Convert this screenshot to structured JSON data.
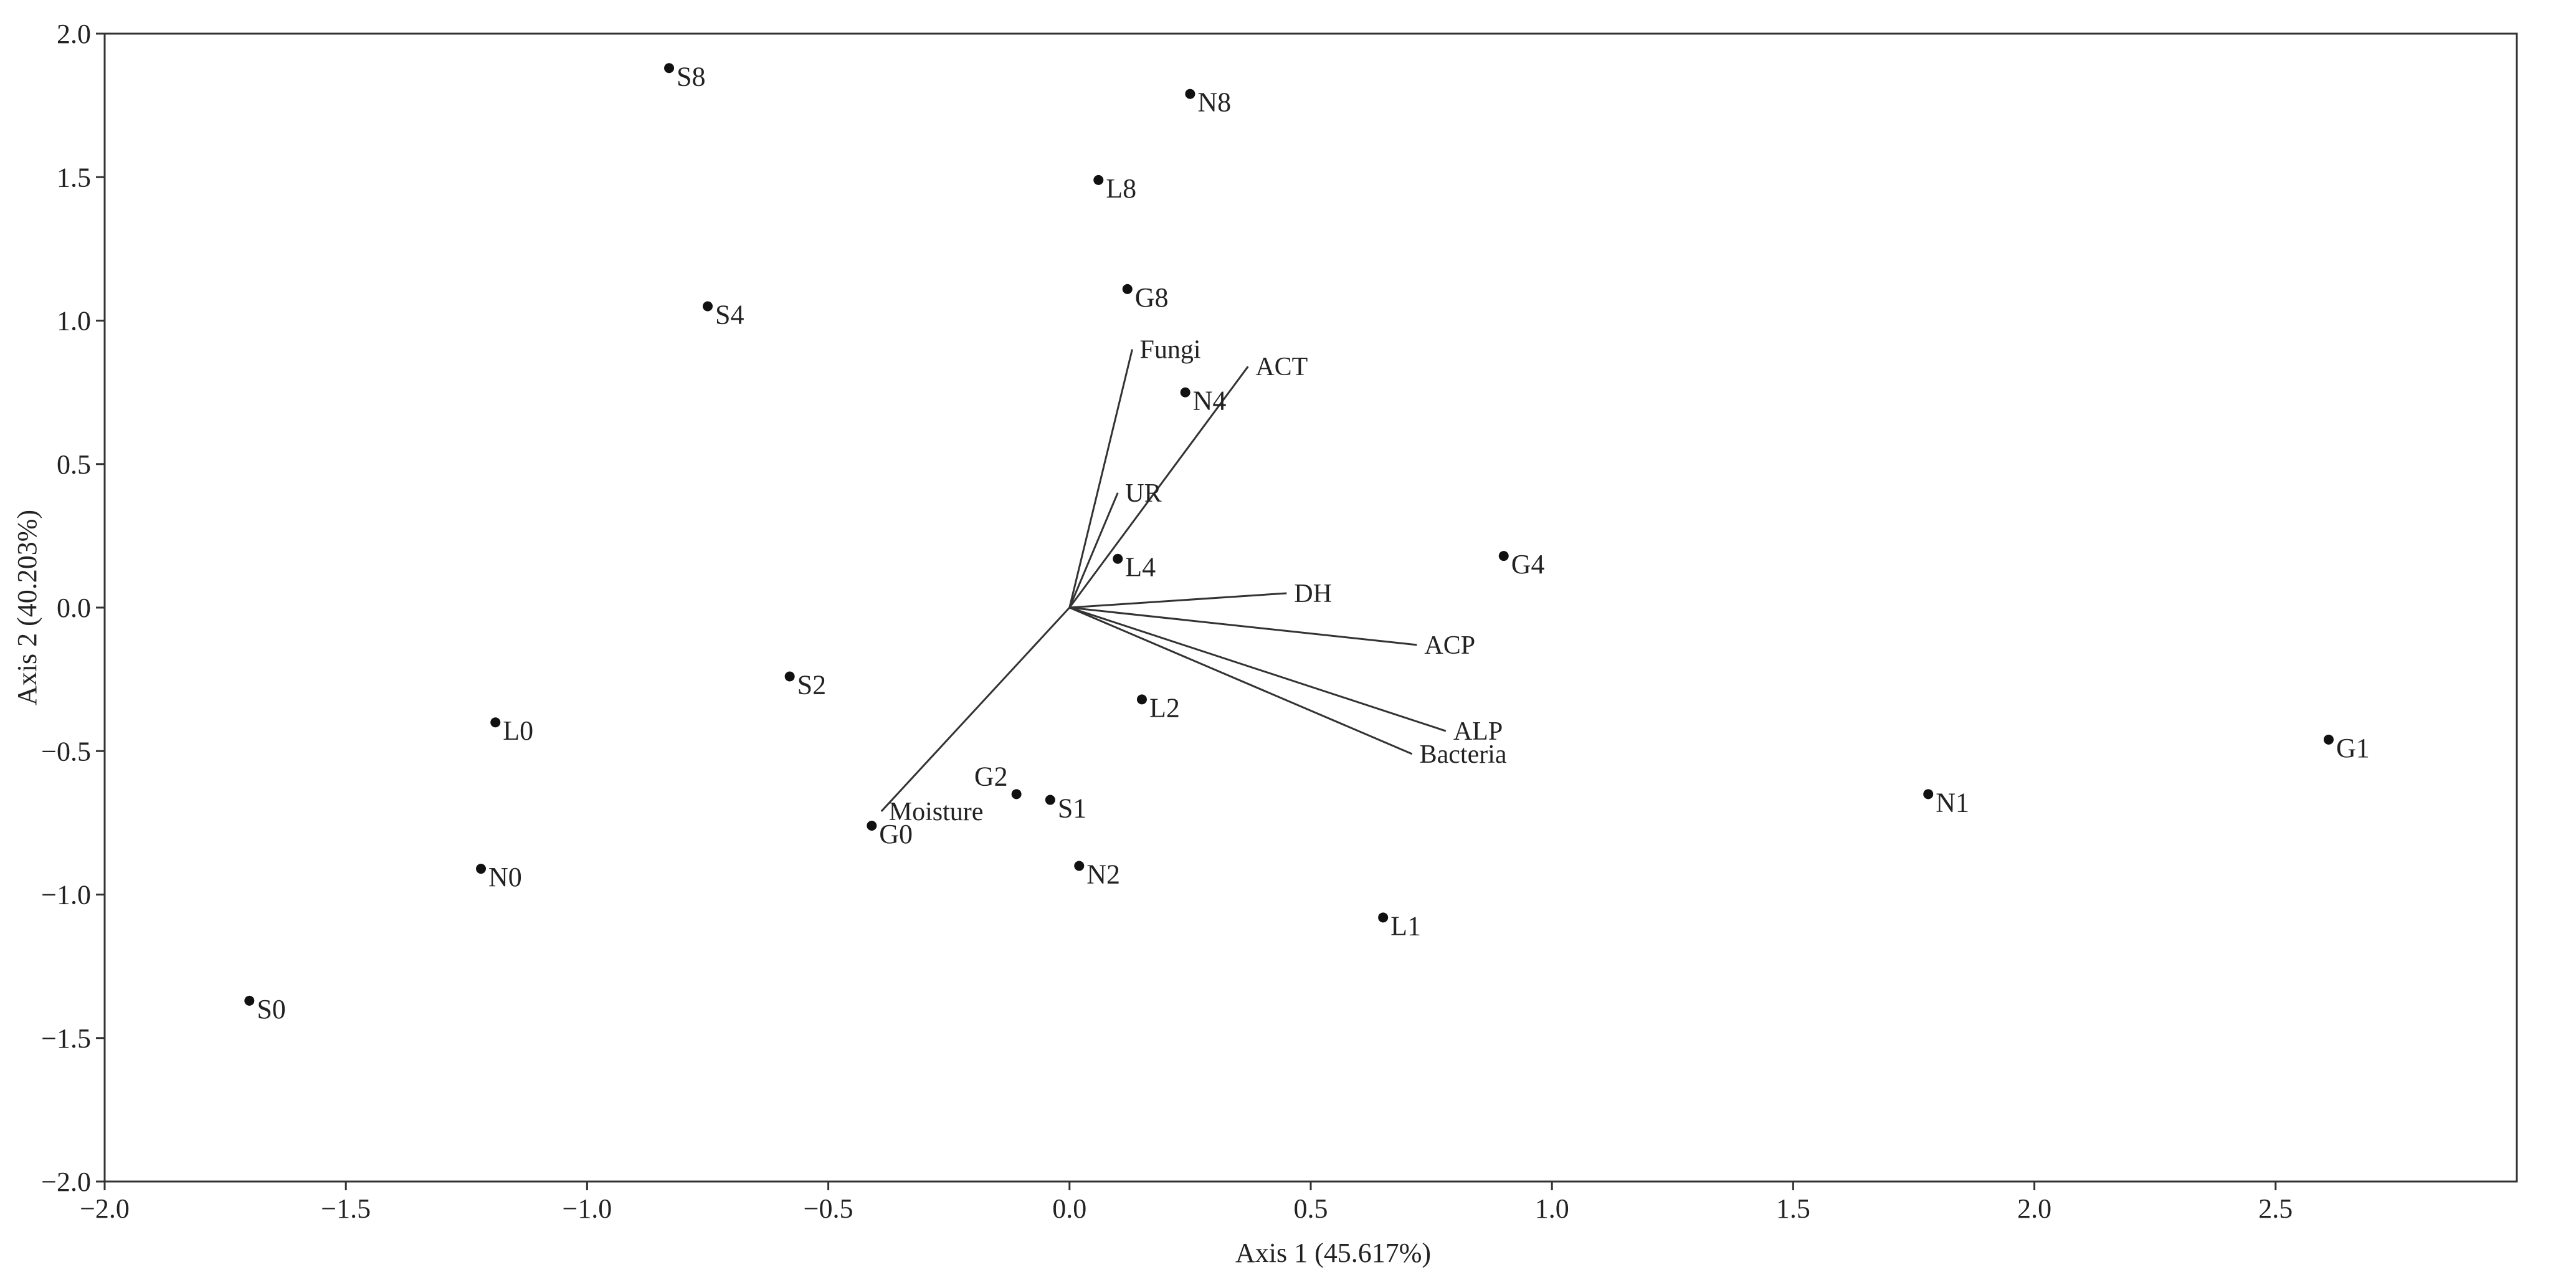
{
  "chart_data": {
    "type": "scatter",
    "subtype": "PCA biplot",
    "title": "",
    "xlabel": "Axis 1 (45.617%)",
    "ylabel": "Axis 2 (40.203%)",
    "xlim": [
      -2.0,
      3.0
    ],
    "ylim": [
      -2.0,
      2.0
    ],
    "x_ticks": [
      -2.0,
      -1.5,
      -1.0,
      -0.5,
      0.0,
      0.5,
      1.0,
      1.5,
      2.0,
      2.5
    ],
    "x_tick_labels": [
      "−2.0",
      "−1.5",
      "−1.0",
      "−0.5",
      "0.0",
      "0.5",
      "1.0",
      "1.5",
      "2.0",
      "2.5"
    ],
    "y_ticks": [
      2.0,
      1.5,
      1.0,
      0.5,
      0.0,
      -0.5,
      -1.0,
      -1.5,
      -2.0
    ],
    "y_tick_labels": [
      "2.0",
      "1.5",
      "1.0",
      "0.5",
      "0.0",
      "−0.5",
      "−1.0",
      "−1.5",
      "−2.0"
    ],
    "grid": false,
    "points": [
      {
        "label": "S8",
        "x": -0.83,
        "y": 1.88,
        "label_pos": "right"
      },
      {
        "label": "N8",
        "x": 0.25,
        "y": 1.79,
        "label_pos": "right"
      },
      {
        "label": "L8",
        "x": 0.06,
        "y": 1.49,
        "label_pos": "right"
      },
      {
        "label": "G8",
        "x": 0.12,
        "y": 1.11,
        "label_pos": "right"
      },
      {
        "label": "S4",
        "x": -0.75,
        "y": 1.05,
        "label_pos": "right"
      },
      {
        "label": "N4",
        "x": 0.24,
        "y": 0.75,
        "label_pos": "right"
      },
      {
        "label": "L4",
        "x": 0.1,
        "y": 0.17,
        "label_pos": "right"
      },
      {
        "label": "G4",
        "x": 0.9,
        "y": 0.18,
        "label_pos": "right"
      },
      {
        "label": "S2",
        "x": -0.58,
        "y": -0.24,
        "label_pos": "right"
      },
      {
        "label": "L2",
        "x": 0.15,
        "y": -0.32,
        "label_pos": "right"
      },
      {
        "label": "L0",
        "x": -1.19,
        "y": -0.4,
        "label_pos": "right"
      },
      {
        "label": "G1",
        "x": 2.61,
        "y": -0.46,
        "label_pos": "right"
      },
      {
        "label": "N1",
        "x": 1.78,
        "y": -0.65,
        "label_pos": "right"
      },
      {
        "label": "G2",
        "x": -0.11,
        "y": -0.65,
        "label_pos": "left"
      },
      {
        "label": "S1",
        "x": -0.04,
        "y": -0.67,
        "label_pos": "right"
      },
      {
        "label": "G0",
        "x": -0.41,
        "y": -0.76,
        "label_pos": "right"
      },
      {
        "label": "N2",
        "x": 0.02,
        "y": -0.9,
        "label_pos": "right"
      },
      {
        "label": "N0",
        "x": -1.22,
        "y": -0.91,
        "label_pos": "right"
      },
      {
        "label": "L1",
        "x": 0.65,
        "y": -1.08,
        "label_pos": "right"
      },
      {
        "label": "S0",
        "x": -1.7,
        "y": -1.37,
        "label_pos": "right"
      }
    ],
    "vectors": [
      {
        "name": "Fungi",
        "x": 0.13,
        "y": 0.9,
        "label_pos": "right"
      },
      {
        "name": "ACT",
        "x": 0.37,
        "y": 0.84,
        "label_pos": "right"
      },
      {
        "name": "UR",
        "x": 0.1,
        "y": 0.4,
        "label_pos": "right"
      },
      {
        "name": "DH",
        "x": 0.45,
        "y": 0.05,
        "label_pos": "right"
      },
      {
        "name": "ACP",
        "x": 0.72,
        "y": -0.13,
        "label_pos": "right"
      },
      {
        "name": "ALP",
        "x": 0.78,
        "y": -0.43,
        "label_pos": "right"
      },
      {
        "name": "Bacteria",
        "x": 0.71,
        "y": -0.51,
        "label_pos": "right"
      },
      {
        "name": "Moisture",
        "x": -0.39,
        "y": -0.71,
        "label_pos": "right"
      }
    ],
    "colors": {
      "points": "#111111",
      "vectors": "#333333",
      "axes": "#333333",
      "text": "#222222"
    }
  }
}
